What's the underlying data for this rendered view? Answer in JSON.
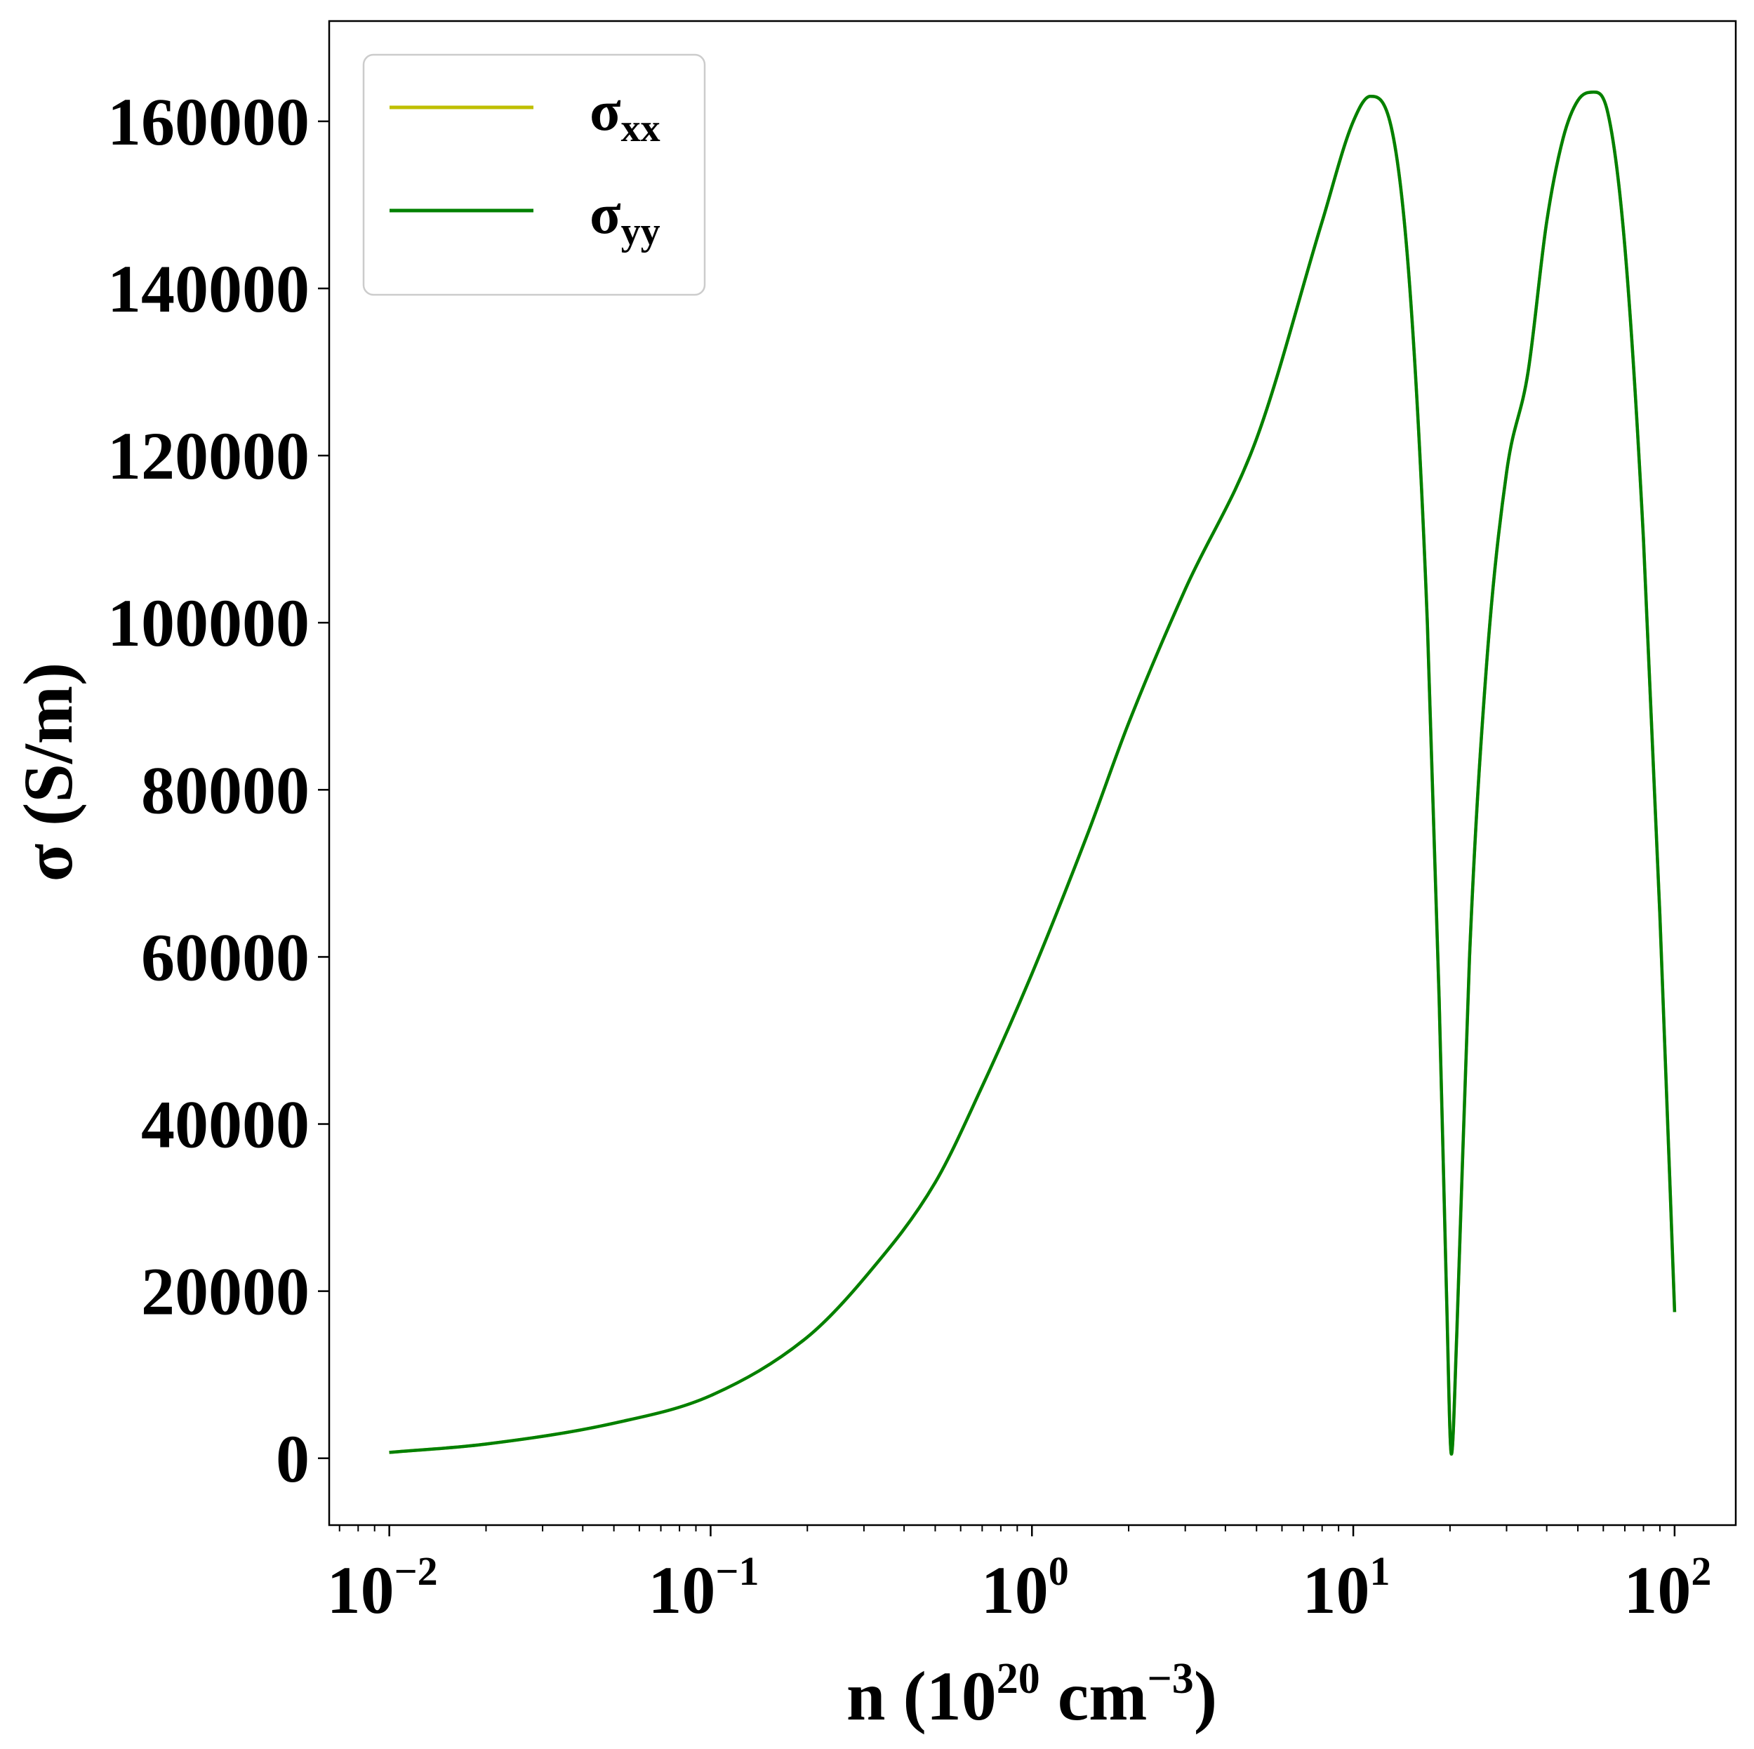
{
  "chart_data": {
    "type": "line",
    "title": "",
    "xlabel": {
      "base": "n (10",
      "exp1": "20",
      "mid": " cm",
      "exp2": "−3",
      "end": ")"
    },
    "ylabel": "σ (S/m)",
    "xscale": "log",
    "xlim": [
      0.0065,
      155
    ],
    "ylim": [
      -8000,
      172000
    ],
    "x_ticks": [
      {
        "value": 0.01,
        "base": "10",
        "exp": "−2"
      },
      {
        "value": 0.1,
        "base": "10",
        "exp": "−1"
      },
      {
        "value": 1,
        "base": "10",
        "exp": "0"
      },
      {
        "value": 10,
        "base": "10",
        "exp": "1"
      },
      {
        "value": 100,
        "base": "10",
        "exp": "2"
      }
    ],
    "y_ticks": [
      {
        "value": 0,
        "label": "0"
      },
      {
        "value": 20000,
        "label": "20000"
      },
      {
        "value": 40000,
        "label": "40000"
      },
      {
        "value": 60000,
        "label": "60000"
      },
      {
        "value": 80000,
        "label": "80000"
      },
      {
        "value": 100000,
        "label": "100000"
      },
      {
        "value": 120000,
        "label": "120000"
      },
      {
        "value": 140000,
        "label": "140000"
      },
      {
        "value": 160000,
        "label": "160000"
      }
    ],
    "grid": false,
    "legend_position": "top-left",
    "series": [
      {
        "name": "σ",
        "sub": "xx",
        "color": "#bfbf00",
        "x": [
          0.01,
          0.02,
          0.05,
          0.1,
          0.2,
          0.3,
          0.5,
          0.7,
          1.0,
          1.5,
          2.0,
          3.0,
          5.0,
          8.0,
          10.0,
          11.3,
          13.0,
          15.0,
          17.0,
          18.5,
          19.5,
          20.2,
          21.0,
          23.0,
          26.0,
          30.0,
          35.0,
          40.0,
          45.0,
          50.0,
          56.0,
          62.0,
          70.0,
          80.0,
          90.0,
          100.0
        ],
        "y": [
          700,
          1700,
          4200,
          7500,
          14500,
          21500,
          33000,
          44500,
          58000,
          75000,
          88000,
          104000,
          122000,
          148000,
          160000,
          163000,
          160000,
          140000,
          100000,
          55000,
          20000,
          500,
          15000,
          60000,
          95000,
          118000,
          130000,
          148000,
          158000,
          162500,
          163500,
          161000,
          145000,
          110000,
          65000,
          17500
        ]
      },
      {
        "name": "σ",
        "sub": "yy",
        "color": "#008000",
        "x": [
          0.01,
          0.02,
          0.05,
          0.1,
          0.2,
          0.3,
          0.5,
          0.7,
          1.0,
          1.5,
          2.0,
          3.0,
          5.0,
          8.0,
          10.0,
          11.3,
          13.0,
          15.0,
          17.0,
          18.5,
          19.5,
          20.2,
          21.0,
          23.0,
          26.0,
          30.0,
          35.0,
          40.0,
          45.0,
          50.0,
          56.0,
          62.0,
          70.0,
          80.0,
          90.0,
          100.0
        ],
        "y": [
          700,
          1700,
          4200,
          7500,
          14500,
          21500,
          33000,
          44500,
          58000,
          75000,
          88000,
          104000,
          122000,
          148000,
          160000,
          163000,
          160000,
          140000,
          100000,
          55000,
          20000,
          500,
          15000,
          60000,
          95000,
          118000,
          130000,
          148000,
          158000,
          162500,
          163500,
          161000,
          145000,
          110000,
          65000,
          17500
        ]
      }
    ]
  }
}
